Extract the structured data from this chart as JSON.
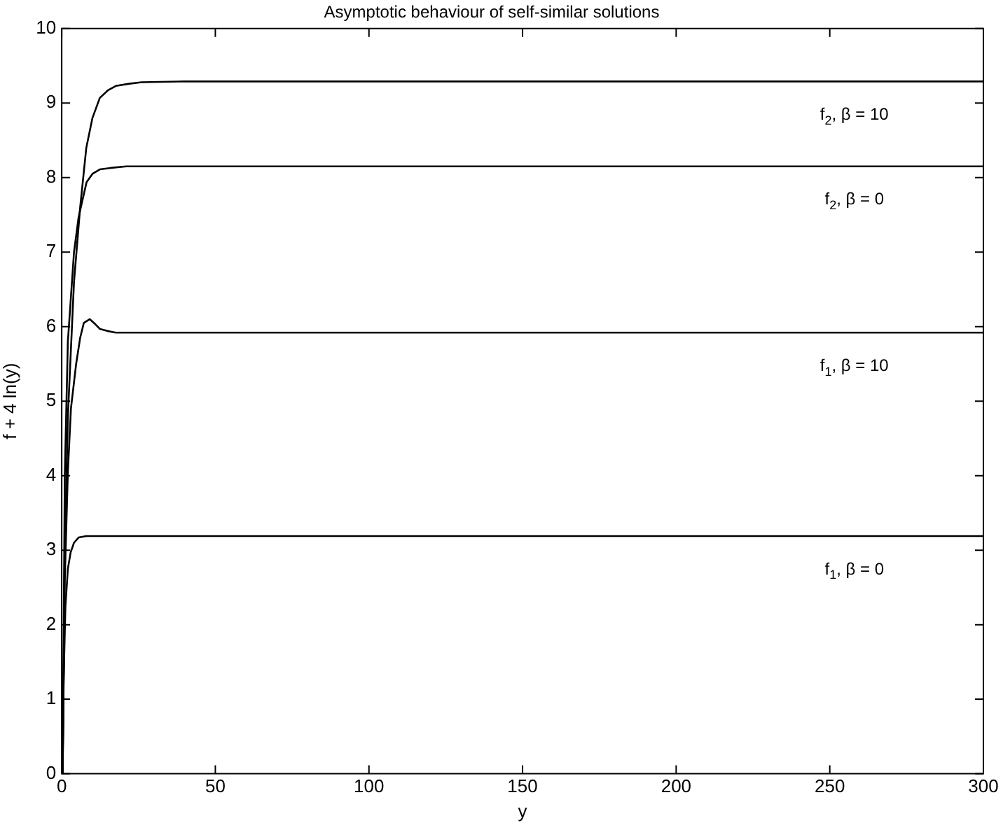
{
  "chart_data": {
    "type": "line",
    "title": "Asymptotic behaviour of self-similar solutions",
    "xlabel": "y",
    "ylabel": "f + 4 ln(y)",
    "series": [
      {
        "name": "f$_{2}$, β = 10",
        "color": "#000000",
        "x": [
          0.3,
          1,
          2,
          4,
          6,
          8,
          10,
          12.4,
          15,
          17.6,
          22,
          26,
          40,
          100,
          200,
          300
        ],
        "values": [
          0,
          3.0,
          4.8,
          6.6,
          7.6,
          8.4,
          8.8,
          9.07,
          9.17,
          9.23,
          9.26,
          9.28,
          9.29,
          9.29,
          9.29,
          9.29
        ]
      },
      {
        "name": "f$_{2}$, β = 0",
        "color": "#000000",
        "x": [
          0.3,
          1,
          2,
          4,
          5.5,
          8.1,
          10,
          12.4,
          16,
          21,
          40,
          100,
          200,
          300
        ],
        "values": [
          0,
          4.0,
          5.8,
          7.0,
          7.47,
          7.94,
          8.05,
          8.11,
          8.13,
          8.15,
          8.15,
          8.15,
          8.15,
          8.15
        ]
      },
      {
        "name": "f$_{1}$, β = 10",
        "color": "#000000",
        "x": [
          0.3,
          1,
          2,
          3,
          4.7,
          6,
          7.2,
          9.1,
          11,
          12.4,
          15,
          17.6,
          25,
          100,
          200,
          300
        ],
        "values": [
          0,
          2.6,
          4.05,
          4.9,
          5.5,
          5.85,
          6.05,
          6.1,
          6.03,
          5.97,
          5.94,
          5.92,
          5.92,
          5.92,
          5.92,
          5.92
        ]
      },
      {
        "name": "f$_{1}$, β = 0",
        "color": "#000000",
        "x": [
          0.3,
          0.6,
          1.2,
          2,
          2.9,
          4,
          5.5,
          8,
          15,
          100,
          200,
          300
        ],
        "values": [
          0,
          1.2,
          2.24,
          2.75,
          2.97,
          3.1,
          3.17,
          3.19,
          3.19,
          3.19,
          3.19,
          3.19
        ]
      }
    ],
    "xlim": [
      0,
      300
    ],
    "xticks": [
      0,
      50,
      100,
      150,
      200,
      250,
      300
    ],
    "ylim": [
      0,
      10
    ],
    "yticks": [
      0,
      1,
      2,
      3,
      4,
      5,
      6,
      7,
      8,
      9,
      10
    ],
    "grid": false,
    "legend": false,
    "marker": "none",
    "line_style": "solid"
  }
}
